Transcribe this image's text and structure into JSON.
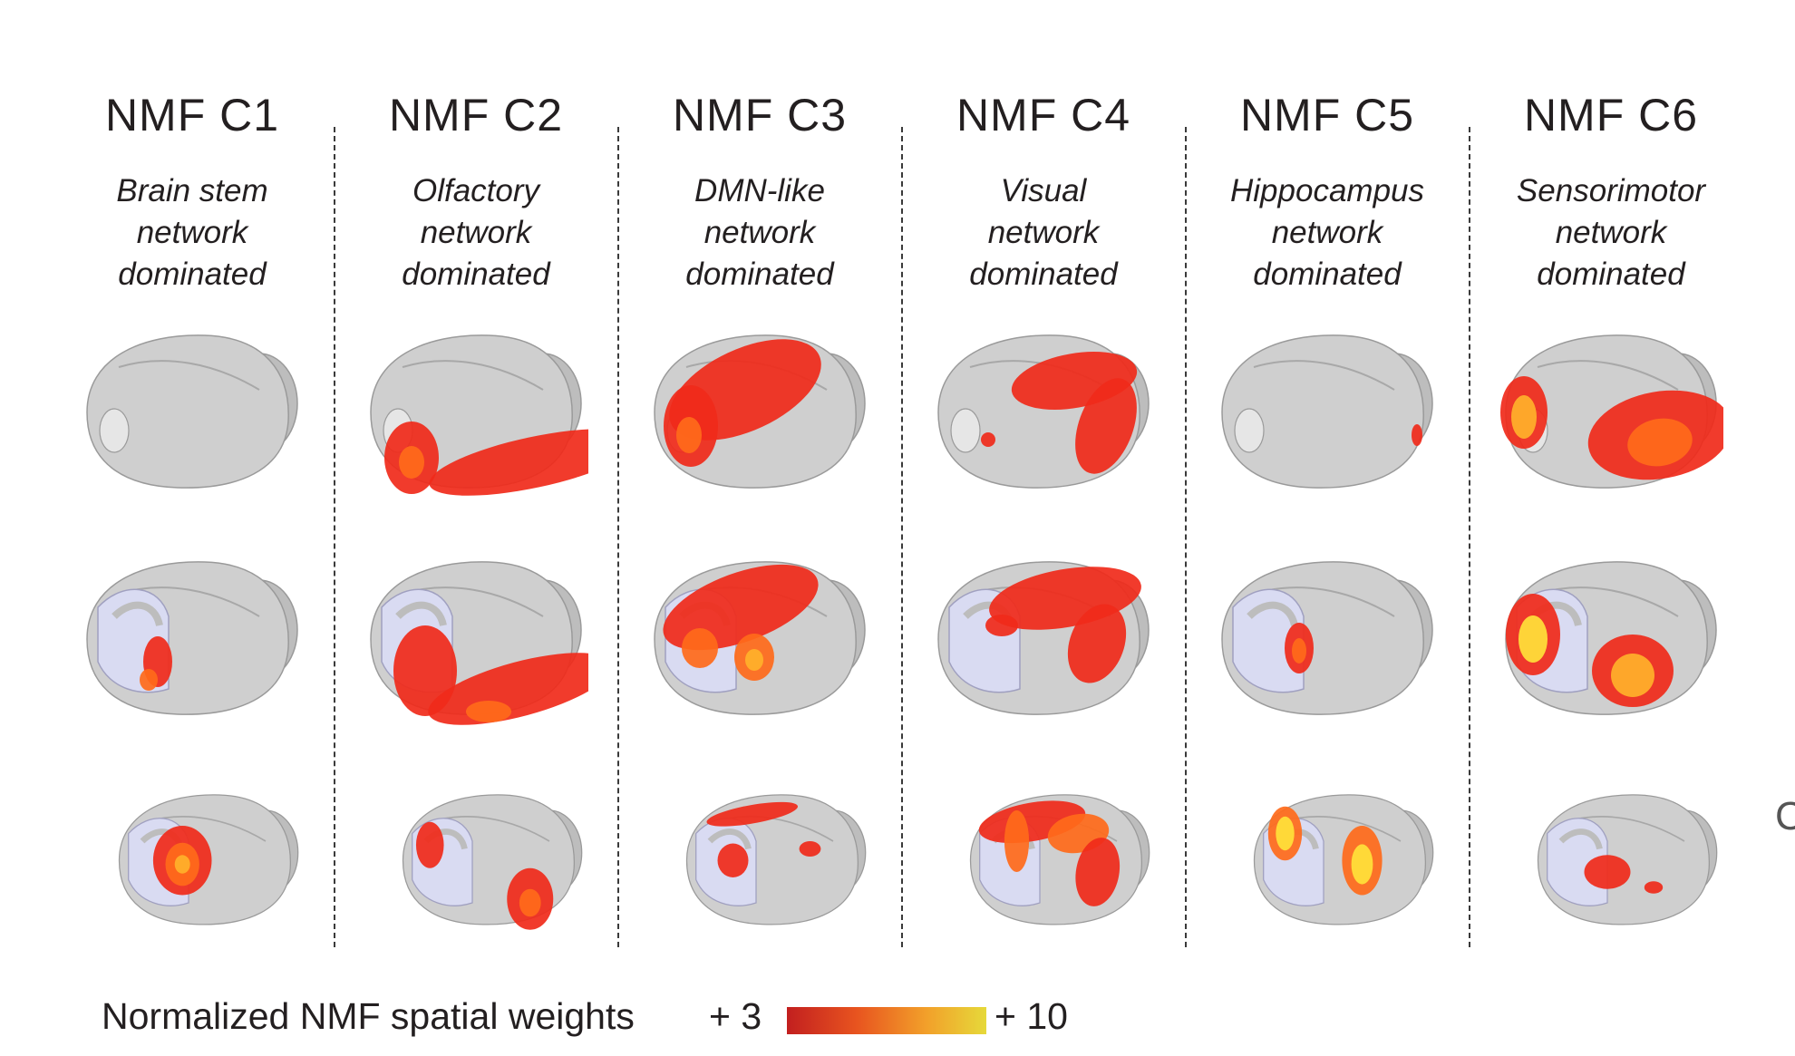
{
  "columns": [
    {
      "title": "NMF C1",
      "subtitle": [
        "Brain stem",
        "network",
        "dominated"
      ]
    },
    {
      "title": "NMF C2",
      "subtitle": [
        "Olfactory",
        "network",
        "dominated"
      ]
    },
    {
      "title": "NMF C3",
      "subtitle": [
        "DMN-like",
        "network",
        "dominated"
      ]
    },
    {
      "title": "NMF C4",
      "subtitle": [
        "Visual",
        "network",
        "dominated"
      ]
    },
    {
      "title": "NMF C5",
      "subtitle": [
        "Hippocampus",
        "network",
        "dominated"
      ]
    },
    {
      "title": "NMF C6",
      "subtitle": [
        "Sensorimotor",
        "network",
        "dominated"
      ]
    }
  ],
  "legend": {
    "label": "Normalized NMF spatial weights",
    "min": "+ 3",
    "max": "+ 10",
    "colors": [
      "#c21f1f",
      "#e8541f",
      "#f2a02a",
      "#e6d93a"
    ]
  },
  "figure": {
    "brain_color": "#cfcfcf",
    "cut_surface_color": "#d9dbf2",
    "activation_colors": [
      "#f02a1a",
      "#ff6a1a",
      "#ffb12a",
      "#ffe23a"
    ],
    "edge_glyph": "C"
  }
}
